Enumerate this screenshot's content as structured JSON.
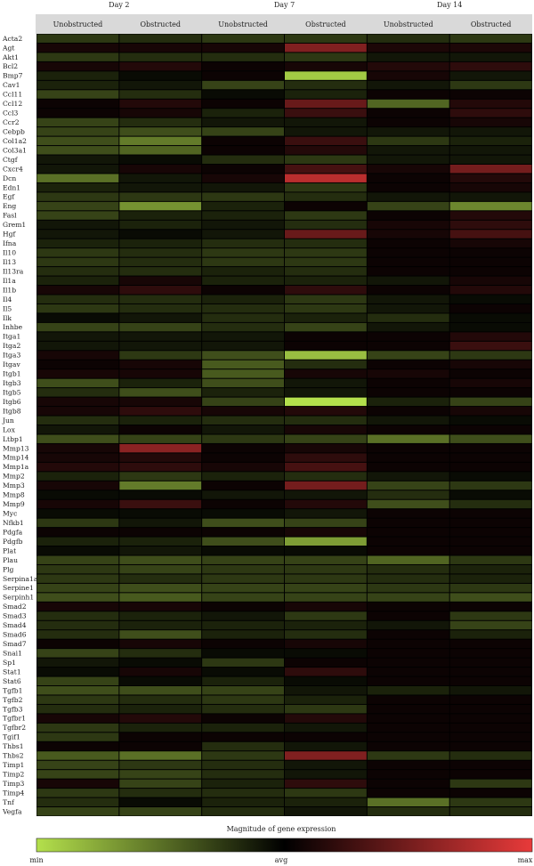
{
  "chart_data": {
    "type": "heatmap",
    "title": "",
    "day_groups": [
      "Day 2",
      "Day 7",
      "Day 14"
    ],
    "columns": [
      "Unobstructed",
      "Obstructed",
      "Unobstructed",
      "Obstructed",
      "Unobstructed",
      "Obstructed"
    ],
    "genes": [
      "Acta2",
      "Agt",
      "Akt1",
      "Bcl2",
      "Bmp7",
      "Cav1",
      "Ccl11",
      "Ccl12",
      "Ccl3",
      "Ccr2",
      "Cebpb",
      "Col1a2",
      "Col3a1",
      "Ctgf",
      "Cxcr4",
      "Dcn",
      "Edn1",
      "Egf",
      "Eng",
      "Fasl",
      "Grem1",
      "Hgf",
      "Ifna",
      "Il10",
      "Il13",
      "Il13ra",
      "Il1a",
      "Il1b",
      "Il4",
      "Il5",
      "Ilk",
      "Inhbe",
      "Itga1",
      "Itga2",
      "Itga3",
      "Itgav",
      "Itgb1",
      "Itgb3",
      "Itgb5",
      "Itgb6",
      "Itgb8",
      "Jun",
      "Lox",
      "Ltbp1",
      "Mmp13",
      "Mmp14",
      "Mmp1a",
      "Mmp2",
      "Mmp3",
      "Mmp8",
      "Mmp9",
      "Myc",
      "Nfkb1",
      "Pdgfa",
      "Pdgfb",
      "Plat",
      "Plau",
      "Plg",
      "Serpina1a",
      "Serpine1",
      "Serpinh1",
      "Smad2",
      "Smad3",
      "Smad4",
      "Smad6",
      "Smad7",
      "Snai1",
      "Sp1",
      "Stat1",
      "Stat6",
      "Tgfb1",
      "Tgfb2",
      "Tgfb3",
      "Tgfbr1",
      "Tgfbr2",
      "Tgif1",
      "Thbs1",
      "Thbs2",
      "Timp1",
      "Timp2",
      "Timp3",
      "Timp4",
      "Tnf",
      "Vegfa"
    ],
    "values": [
      [
        -0.25,
        -0.2,
        -0.25,
        -0.25,
        -0.2,
        -0.25
      ],
      [
        0.1,
        0.1,
        0.1,
        0.55,
        0.12,
        0.12
      ],
      [
        -0.25,
        -0.2,
        -0.2,
        -0.25,
        -0.1,
        -0.1
      ],
      [
        0.1,
        0.15,
        0.05,
        0.1,
        0.15,
        0.2
      ],
      [
        -0.15,
        -0.05,
        0.05,
        -0.9,
        0.1,
        -0.1
      ],
      [
        -0.15,
        -0.1,
        -0.3,
        -0.2,
        -0.1,
        -0.25
      ],
      [
        -0.3,
        -0.2,
        -0.05,
        -0.15,
        0.05,
        0.05
      ],
      [
        0.05,
        0.15,
        0.05,
        0.45,
        -0.45,
        0.15
      ],
      [
        0.05,
        0.1,
        -0.15,
        0.25,
        0.05,
        0.2
      ],
      [
        -0.3,
        -0.2,
        -0.1,
        -0.1,
        0.05,
        0.1
      ],
      [
        -0.3,
        -0.35,
        -0.3,
        -0.1,
        -0.1,
        -0.1
      ],
      [
        -0.35,
        -0.55,
        0.05,
        0.25,
        -0.25,
        -0.15
      ],
      [
        -0.35,
        -0.45,
        0.05,
        0.15,
        -0.1,
        -0.1
      ],
      [
        -0.1,
        -0.05,
        -0.2,
        -0.25,
        -0.1,
        -0.1
      ],
      [
        -0.1,
        0.1,
        0.05,
        0.3,
        0.1,
        0.5
      ],
      [
        -0.5,
        -0.1,
        0.1,
        0.8,
        0.05,
        0.15
      ],
      [
        -0.15,
        -0.1,
        -0.1,
        -0.25,
        0.05,
        0.1
      ],
      [
        -0.25,
        -0.25,
        -0.25,
        -0.2,
        -0.1,
        -0.1
      ],
      [
        -0.3,
        -0.65,
        -0.15,
        0.05,
        -0.3,
        -0.6
      ],
      [
        -0.3,
        -0.15,
        -0.15,
        -0.25,
        0.05,
        0.15
      ],
      [
        -0.1,
        -0.15,
        -0.1,
        -0.2,
        0.1,
        0.2
      ],
      [
        -0.1,
        -0.05,
        -0.1,
        0.45,
        0.1,
        0.3
      ],
      [
        -0.15,
        -0.15,
        -0.2,
        -0.2,
        0.05,
        0.1
      ],
      [
        -0.25,
        -0.2,
        -0.25,
        -0.25,
        0.05,
        0.05
      ],
      [
        -0.25,
        -0.2,
        -0.25,
        -0.25,
        0.05,
        0.05
      ],
      [
        -0.2,
        -0.2,
        -0.15,
        -0.2,
        0.05,
        0.05
      ],
      [
        -0.15,
        0.1,
        -0.15,
        -0.15,
        -0.1,
        0.1
      ],
      [
        0.1,
        0.2,
        0.05,
        0.2,
        0.05,
        0.15
      ],
      [
        -0.2,
        -0.2,
        -0.15,
        -0.25,
        -0.1,
        -0.05
      ],
      [
        -0.25,
        -0.2,
        -0.2,
        -0.25,
        -0.1,
        0.05
      ],
      [
        -0.05,
        -0.1,
        -0.2,
        -0.15,
        -0.2,
        -0.05
      ],
      [
        -0.3,
        -0.3,
        -0.2,
        -0.3,
        -0.1,
        -0.05
      ],
      [
        -0.1,
        -0.1,
        -0.1,
        0.05,
        0.05,
        0.15
      ],
      [
        -0.1,
        -0.1,
        -0.1,
        0.05,
        0.05,
        0.25
      ],
      [
        0.1,
        -0.25,
        -0.35,
        -0.85,
        -0.3,
        -0.25
      ],
      [
        0.05,
        0.1,
        -0.4,
        -0.2,
        0.05,
        0.1
      ],
      [
        0.1,
        0.1,
        -0.4,
        0.1,
        0.1,
        0.05
      ],
      [
        -0.35,
        -0.15,
        -0.35,
        -0.1,
        0.05,
        0.1
      ],
      [
        -0.2,
        -0.35,
        -0.15,
        -0.1,
        0.05,
        0.05
      ],
      [
        0.1,
        0.1,
        -0.3,
        -1.0,
        -0.15,
        -0.3
      ],
      [
        0.1,
        0.2,
        0.1,
        0.15,
        0.05,
        0.1
      ],
      [
        -0.2,
        -0.15,
        -0.2,
        -0.2,
        -0.1,
        -0.05
      ],
      [
        -0.1,
        0.05,
        -0.1,
        0.1,
        0.05,
        0.05
      ],
      [
        -0.35,
        -0.3,
        -0.25,
        -0.3,
        -0.5,
        -0.35
      ],
      [
        0.1,
        0.6,
        0.05,
        0.1,
        0.05,
        0.05
      ],
      [
        0.1,
        0.15,
        0.05,
        0.2,
        0.05,
        0.05
      ],
      [
        0.15,
        0.2,
        0.1,
        0.3,
        0.05,
        0.05
      ],
      [
        -0.15,
        -0.25,
        -0.15,
        -0.2,
        -0.1,
        -0.05
      ],
      [
        0.1,
        -0.55,
        0.05,
        0.5,
        -0.3,
        -0.25
      ],
      [
        -0.05,
        -0.05,
        -0.1,
        -0.1,
        -0.2,
        -0.05
      ],
      [
        0.1,
        0.25,
        0.05,
        0.15,
        -0.35,
        -0.2
      ],
      [
        -0.05,
        -0.05,
        -0.05,
        -0.1,
        0.05,
        0.05
      ],
      [
        -0.25,
        -0.1,
        -0.35,
        -0.3,
        0.05,
        0.05
      ],
      [
        0.05,
        0.05,
        0.05,
        0.1,
        0.05,
        0.05
      ],
      [
        -0.15,
        -0.15,
        -0.35,
        -0.7,
        0.05,
        0.05
      ],
      [
        -0.05,
        -0.1,
        -0.05,
        -0.05,
        0.05,
        0.05
      ],
      [
        -0.3,
        -0.35,
        -0.3,
        -0.3,
        -0.45,
        -0.25
      ],
      [
        -0.25,
        -0.3,
        -0.25,
        -0.25,
        -0.2,
        -0.15
      ],
      [
        -0.25,
        -0.2,
        -0.25,
        -0.25,
        -0.2,
        -0.15
      ],
      [
        -0.3,
        -0.35,
        -0.3,
        -0.3,
        -0.25,
        -0.25
      ],
      [
        -0.35,
        -0.4,
        -0.3,
        -0.3,
        -0.3,
        -0.35
      ],
      [
        0.1,
        0.1,
        0.05,
        0.1,
        0.05,
        0.05
      ],
      [
        -0.2,
        -0.15,
        -0.1,
        -0.25,
        0.05,
        -0.25
      ],
      [
        -0.2,
        -0.15,
        -0.15,
        -0.15,
        -0.1,
        -0.3
      ],
      [
        -0.2,
        -0.35,
        -0.15,
        -0.2,
        0.05,
        -0.15
      ],
      [
        0.05,
        0.1,
        0.05,
        0.1,
        0.05,
        0.05
      ],
      [
        -0.3,
        -0.2,
        -0.05,
        -0.05,
        0.05,
        0.05
      ],
      [
        -0.1,
        -0.05,
        -0.25,
        0.05,
        0.05,
        0.05
      ],
      [
        -0.05,
        0.1,
        -0.05,
        0.2,
        0.05,
        0.05
      ],
      [
        -0.3,
        -0.05,
        -0.15,
        -0.05,
        0.05,
        0.05
      ],
      [
        -0.35,
        -0.35,
        -0.3,
        -0.1,
        -0.15,
        -0.1
      ],
      [
        -0.25,
        -0.2,
        -0.25,
        -0.15,
        0.05,
        0.05
      ],
      [
        -0.2,
        -0.15,
        -0.2,
        -0.25,
        0.05,
        0.05
      ],
      [
        0.1,
        0.15,
        0.05,
        0.15,
        0.05,
        0.05
      ],
      [
        -0.25,
        -0.15,
        -0.15,
        -0.1,
        0.05,
        0.05
      ],
      [
        -0.25,
        0.05,
        0.05,
        0.05,
        0.05,
        0.05
      ],
      [
        0.05,
        0.05,
        -0.2,
        -0.1,
        0.05,
        0.05
      ],
      [
        -0.4,
        -0.5,
        -0.25,
        0.55,
        -0.25,
        -0.2
      ],
      [
        -0.3,
        -0.25,
        -0.2,
        -0.1,
        0.05,
        0.05
      ],
      [
        -0.3,
        -0.3,
        -0.2,
        -0.1,
        0.05,
        0.05
      ],
      [
        0.1,
        -0.3,
        -0.15,
        0.2,
        0.05,
        -0.25
      ],
      [
        -0.25,
        -0.2,
        -0.2,
        -0.25,
        0.05,
        0.05
      ],
      [
        -0.2,
        -0.05,
        -0.15,
        -0.15,
        -0.5,
        -0.25
      ],
      [
        -0.3,
        -0.3,
        -0.2,
        -0.1,
        -0.2,
        -0.2
      ]
    ],
    "value_range": [
      -1,
      1
    ],
    "colors": {
      "min": "#b4e04c",
      "avg": "#000000",
      "max": "#e83a3a"
    },
    "legend": {
      "title": "Magnitude of gene expression",
      "min_label": "min",
      "avg_label": "avg",
      "max_label": "max",
      "placement": "bottom"
    },
    "grid": false
  }
}
